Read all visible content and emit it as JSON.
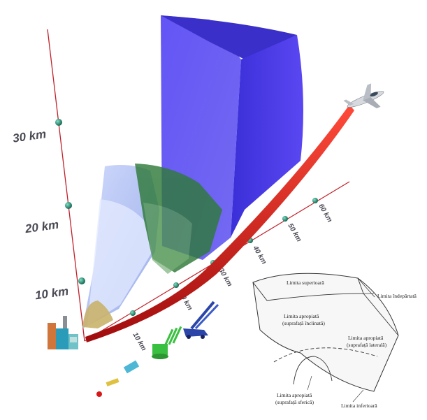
{
  "altitude_axis": {
    "labels": [
      "10 km",
      "20 km",
      "30 km"
    ],
    "color": "#c0202a"
  },
  "range_axis": {
    "labels": [
      "10 km",
      "20 km",
      "30 km",
      "40 km",
      "50 km",
      "60 km"
    ]
  },
  "zones": {
    "long_range_color": "#4a3ff0",
    "medium_range_color": "#8aa0f0",
    "short_range_color": "#2f7a3a",
    "very_short_range_color": "#c9b36a"
  },
  "trajectory_color": "#d01818",
  "marker_color": "#1e8a6e",
  "icons": [
    "radar-building-icon",
    "jet-aircraft-icon",
    "missile-launcher-icon",
    "anti-aircraft-gun-icon",
    "manpads-icon"
  ],
  "inset": {
    "labels": {
      "upper": "Limita superioară",
      "remote": "Limita îndepărtată",
      "near_inclined_1": "Limita apropiată",
      "near_inclined_2": "(suprafață înclinată)",
      "near_lateral_1": "Limita apropiată",
      "near_lateral_2": "(suprafață laterală)",
      "near_spherical_1": "Limita apropiată",
      "near_spherical_2": "(suprafață sferică)",
      "lower": "Limita inferioară"
    }
  }
}
